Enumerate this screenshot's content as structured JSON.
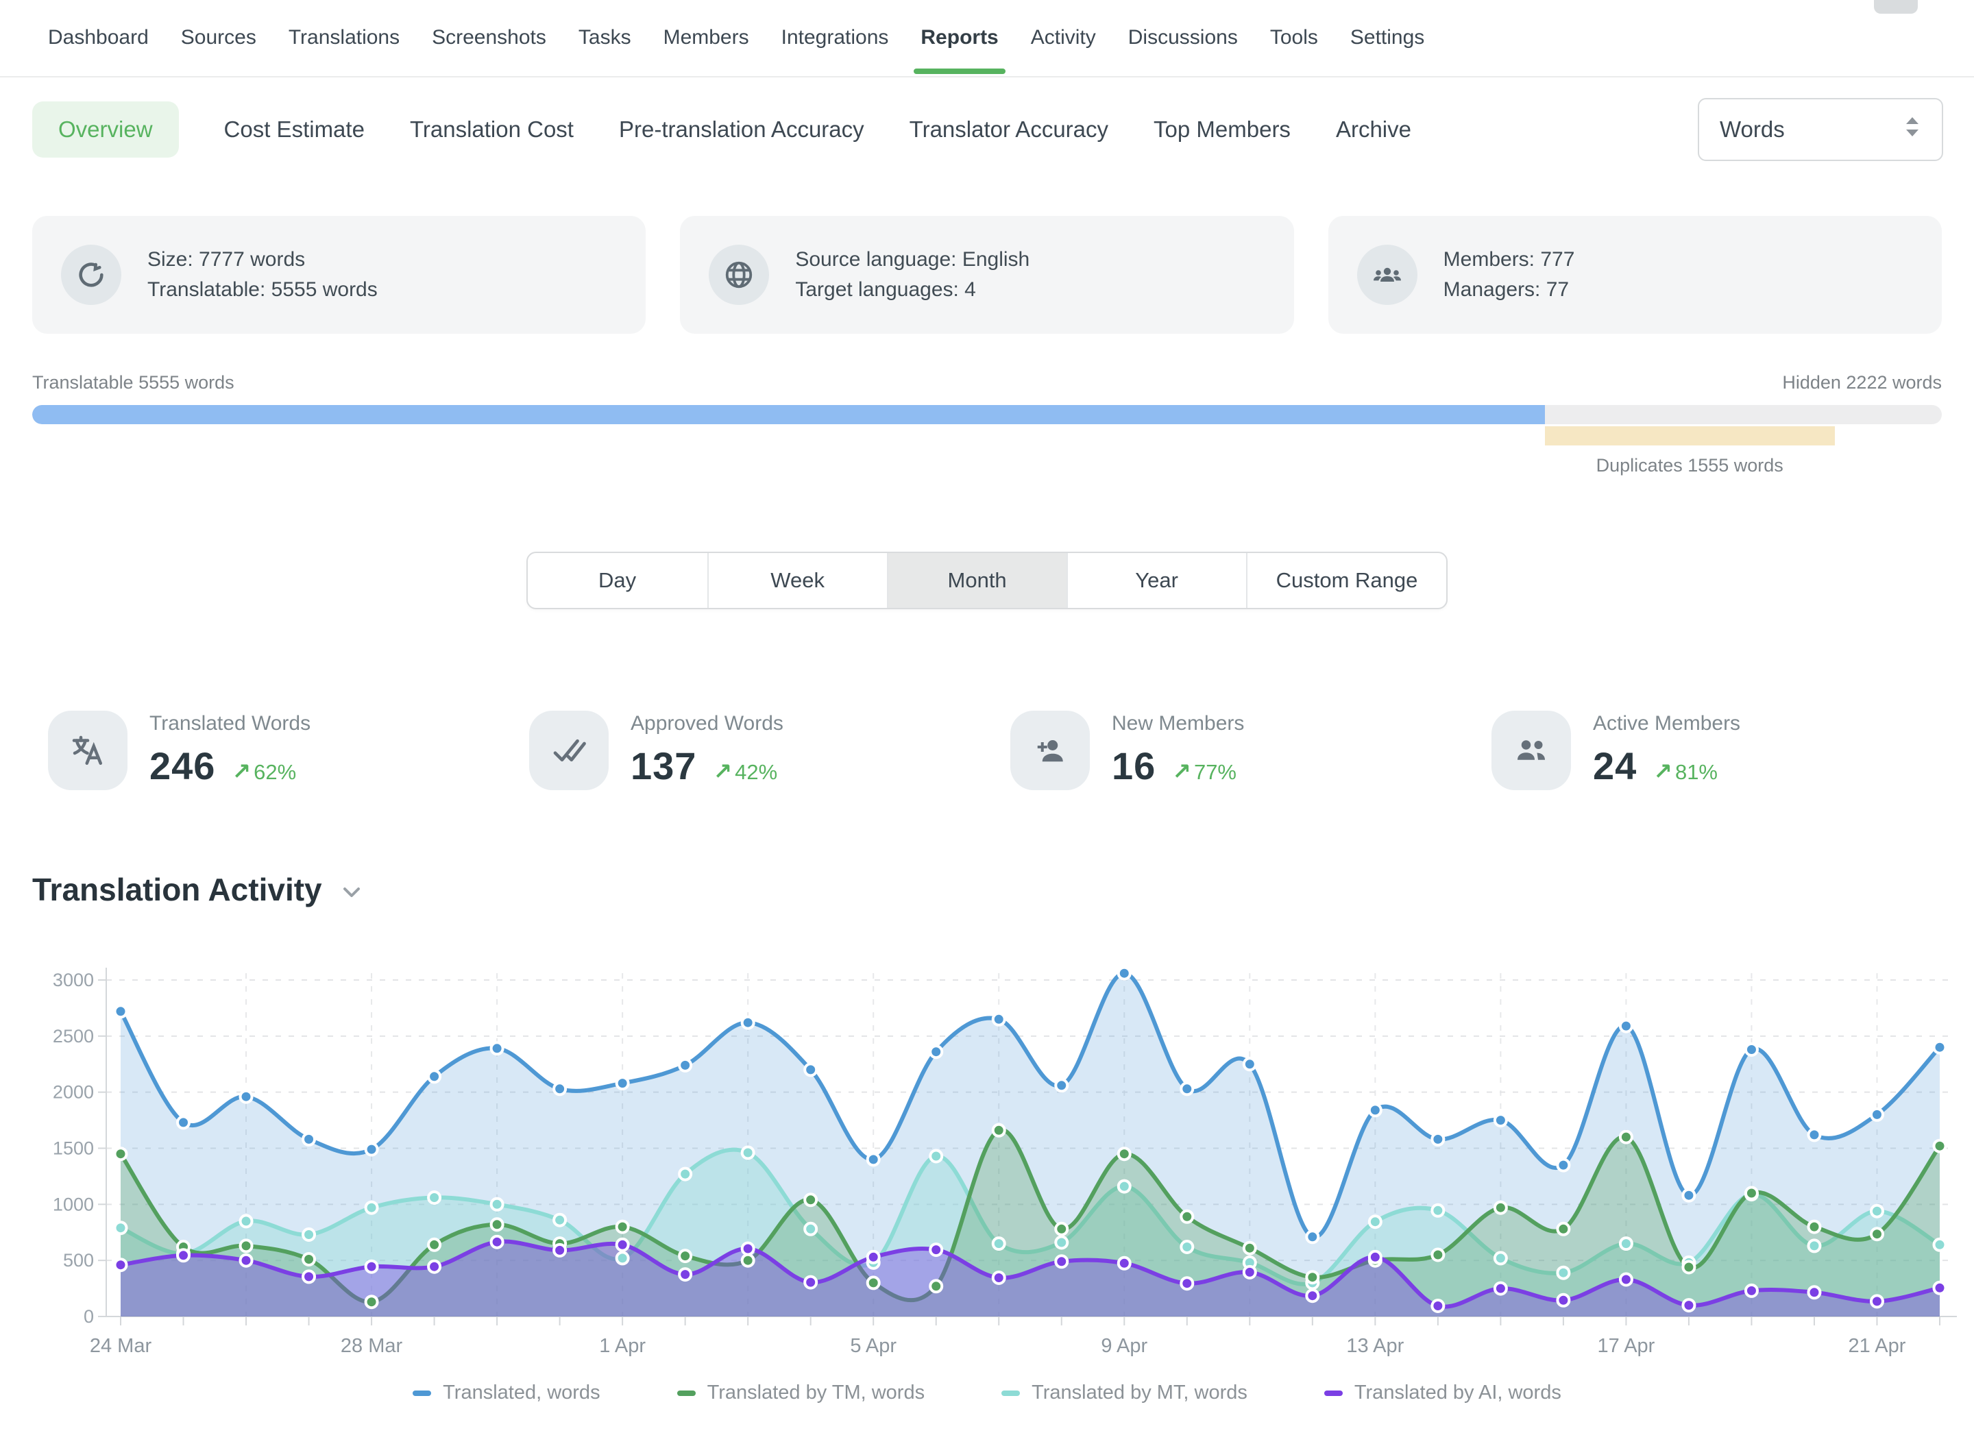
{
  "accent_color": "#57b35f",
  "icons": {
    "trend_up": "↗"
  },
  "topnav": {
    "items": [
      {
        "label": "Dashboard",
        "active": false
      },
      {
        "label": "Sources",
        "active": false
      },
      {
        "label": "Translations",
        "active": false
      },
      {
        "label": "Screenshots",
        "active": false
      },
      {
        "label": "Tasks",
        "active": false
      },
      {
        "label": "Members",
        "active": false
      },
      {
        "label": "Integrations",
        "active": false
      },
      {
        "label": "Reports",
        "active": true
      },
      {
        "label": "Activity",
        "active": false
      },
      {
        "label": "Discussions",
        "active": false
      },
      {
        "label": "Tools",
        "active": false
      },
      {
        "label": "Settings",
        "active": false
      }
    ]
  },
  "subnav": {
    "items": [
      {
        "label": "Overview",
        "active": true
      },
      {
        "label": "Cost Estimate",
        "active": false
      },
      {
        "label": "Translation Cost",
        "active": false
      },
      {
        "label": "Pre-translation Accuracy",
        "active": false
      },
      {
        "label": "Translator Accuracy",
        "active": false
      },
      {
        "label": "Top Members",
        "active": false
      },
      {
        "label": "Archive",
        "active": false
      }
    ],
    "unit_selector": {
      "value": "Words"
    }
  },
  "summary_cards": [
    {
      "icon": "sync-icon",
      "line1": "Size: 7777 words",
      "line2": "Translatable: 5555 words"
    },
    {
      "icon": "globe-icon",
      "line1": "Source language: English",
      "line2": "Target languages: 4"
    },
    {
      "icon": "members-icon",
      "line1": "Members: 777",
      "line2": "Managers: 77"
    }
  ],
  "word_breakdown": {
    "left_label": "Translatable 5555 words",
    "right_label": "Hidden 2222 words",
    "duplicates_label": "Duplicates 1555 words",
    "translatable_pct": 79.2,
    "duplicates_start_pct": 79.2,
    "duplicates_width_pct": 15.2,
    "fill_color": "#8fbcf2",
    "track_color": "#ededee",
    "duplicates_color": "#f6e7c3"
  },
  "range_tabs": {
    "options": [
      "Day",
      "Week",
      "Month",
      "Year",
      "Custom Range"
    ],
    "selected": "Month"
  },
  "kpis": [
    {
      "icon": "translate-icon",
      "label": "Translated Words",
      "value": "246",
      "delta": "62%"
    },
    {
      "icon": "double-check-icon",
      "label": "Approved Words",
      "value": "137",
      "delta": "42%"
    },
    {
      "icon": "person-add-icon",
      "label": "New Members",
      "value": "16",
      "delta": "77%"
    },
    {
      "icon": "people-icon",
      "label": "Active Members",
      "value": "24",
      "delta": "81%"
    }
  ],
  "section": {
    "title": "Translation Activity"
  },
  "chart_data": {
    "type": "area",
    "title": "Translation Activity",
    "grid": true,
    "legend_position": "bottom",
    "ylim": [
      0,
      3000
    ],
    "yticks": [
      0,
      500,
      1000,
      1500,
      2000,
      2500,
      3000
    ],
    "xtick_labels": [
      "24 Mar",
      "28 Mar",
      "1 Apr",
      "5 Apr",
      "9 Apr",
      "13 Apr",
      "17 Apr",
      "21 Apr"
    ],
    "xtick_indices": [
      0,
      4,
      8,
      12,
      16,
      20,
      24,
      28
    ],
    "categories": [
      "24 Mar",
      "25 Mar",
      "26 Mar",
      "27 Mar",
      "28 Mar",
      "29 Mar",
      "30 Mar",
      "31 Mar",
      "1 Apr",
      "2 Apr",
      "3 Apr",
      "4 Apr",
      "5 Apr",
      "6 Apr",
      "7 Apr",
      "8 Apr",
      "9 Apr",
      "10 Apr",
      "11 Apr",
      "12 Apr",
      "13 Apr",
      "14 Apr",
      "15 Apr",
      "16 Apr",
      "17 Apr",
      "18 Apr",
      "19 Apr",
      "20 Apr",
      "21 Apr",
      "22 Apr"
    ],
    "series": [
      {
        "name": "Translated, words",
        "color": "#4e98d4",
        "fill": "rgba(78,152,212,0.22)",
        "values": [
          2720,
          1730,
          1960,
          1580,
          1490,
          2140,
          2390,
          2030,
          2080,
          2240,
          2620,
          2200,
          1400,
          2360,
          2650,
          2060,
          3060,
          2030,
          2250,
          710,
          1840,
          1580,
          1750,
          1350,
          2590,
          1080,
          2380,
          1620,
          1800,
          2400
        ]
      },
      {
        "name": "Translated by TM, words",
        "color": "#53a05e",
        "fill": "rgba(83,160,94,0.30)",
        "values": [
          1450,
          620,
          630,
          510,
          130,
          640,
          820,
          650,
          800,
          540,
          500,
          1040,
          300,
          270,
          1660,
          780,
          1450,
          890,
          610,
          350,
          500,
          550,
          970,
          780,
          1600,
          440,
          1100,
          800,
          735,
          1520
        ]
      },
      {
        "name": "Translated by MT, words",
        "color": "#8ddbd5",
        "fill": "rgba(141,219,213,0.38)",
        "values": [
          790,
          560,
          850,
          730,
          970,
          1060,
          1000,
          860,
          520,
          1270,
          1460,
          780,
          480,
          1430,
          650,
          660,
          1160,
          620,
          480,
          300,
          845,
          945,
          520,
          390,
          650,
          480,
          1090,
          630,
          940,
          640
        ]
      },
      {
        "name": "Translated by AI, words",
        "color": "#7b3fe4",
        "fill": "rgba(123,63,228,0.38)",
        "values": [
          460,
          545,
          500,
          355,
          445,
          445,
          665,
          590,
          640,
          375,
          605,
          305,
          530,
          595,
          345,
          490,
          475,
          295,
          395,
          185,
          530,
          95,
          250,
          145,
          330,
          100,
          230,
          215,
          135,
          255
        ]
      }
    ],
    "draw_order": [
      0,
      2,
      1,
      3
    ]
  }
}
